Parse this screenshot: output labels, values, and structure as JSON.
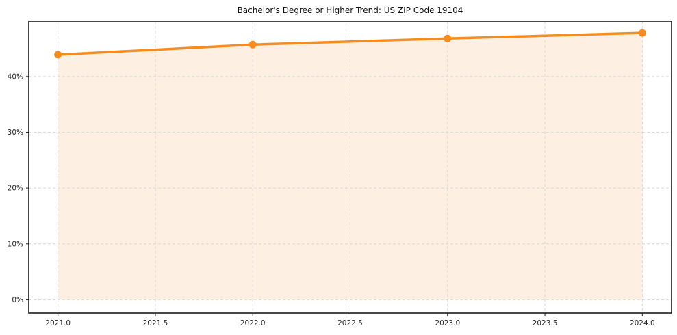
{
  "chart_data": {
    "type": "area",
    "title": "Bachelor's Degree or Higher Trend: US ZIP Code 19104",
    "x": [
      2021,
      2022,
      2023,
      2024
    ],
    "values": [
      43.9,
      45.7,
      46.8,
      47.8
    ],
    "xlabel": "",
    "ylabel": "",
    "xlim": [
      2020.85,
      2024.15
    ],
    "ylim": [
      -2.4,
      49.9
    ],
    "x_ticks": {
      "values": [
        2021.0,
        2021.5,
        2022.0,
        2022.5,
        2023.0,
        2023.5,
        2024.0
      ],
      "labels": [
        "2021.0",
        "2021.5",
        "2022.0",
        "2022.5",
        "2023.0",
        "2023.5",
        "2024.0"
      ]
    },
    "y_ticks": {
      "values": [
        0,
        10,
        20,
        30,
        40
      ],
      "labels": [
        "0%",
        "10%",
        "20%",
        "30%",
        "40%"
      ]
    },
    "grid": true,
    "grid_style": "dashed",
    "legend_position": "none",
    "colors": {
      "line": "#f78c1e",
      "marker": "#f78c1e",
      "fill": "#fdf0e2",
      "grid": "#d6d6d6",
      "spine": "#1a1a1a",
      "tick_label": "#262626",
      "title": "#111111",
      "background": "#ffffff"
    }
  }
}
